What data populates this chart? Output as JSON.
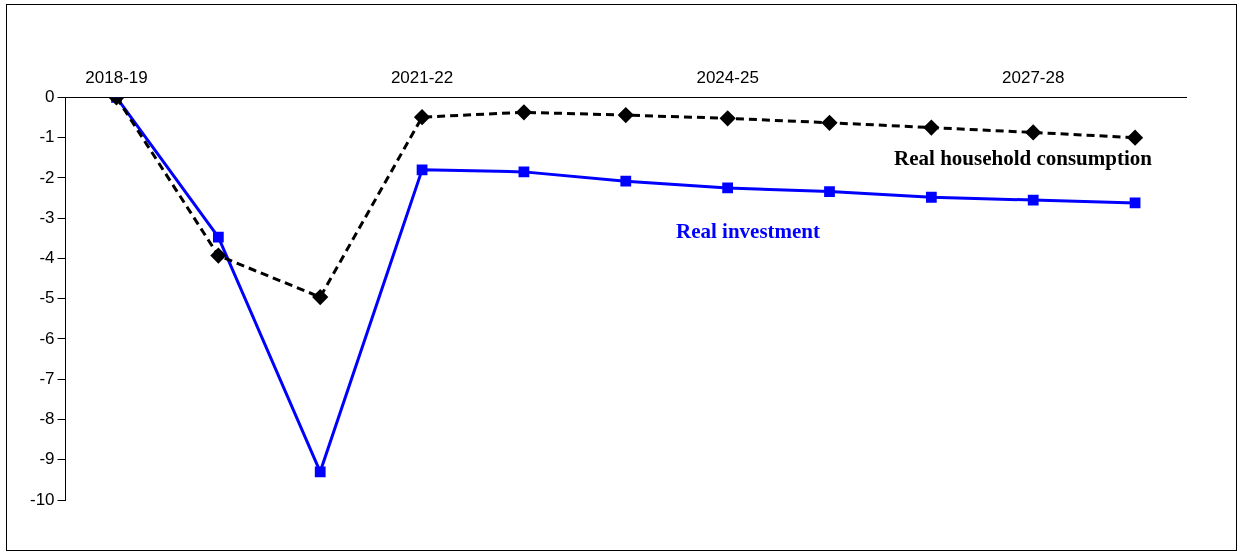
{
  "chart_data": {
    "type": "line",
    "categories": [
      "2018-19",
      null,
      null,
      "2021-22",
      null,
      null,
      "2024-25",
      null,
      null,
      "2027-28",
      null
    ],
    "ylim": [
      -10,
      0
    ],
    "yticks": [
      -10,
      -9,
      -8,
      -7,
      -6,
      -5,
      -4,
      -3,
      -2,
      -1,
      0
    ],
    "grid": false,
    "legend": false,
    "series": [
      {
        "name": "Real household consumption",
        "color": "#000000",
        "marker": "diamond",
        "line_style": "dashed",
        "values": [
          0,
          -3.93,
          -4.96,
          -0.49,
          -0.37,
          -0.44,
          -0.52,
          -0.63,
          -0.75,
          -0.87,
          -1.0
        ]
      },
      {
        "name": "Real investment",
        "color": "#0000ff",
        "marker": "square",
        "line_style": "solid",
        "values": [
          0,
          -3.47,
          -9.3,
          -1.8,
          -1.85,
          -2.08,
          -2.25,
          -2.34,
          -2.48,
          -2.55,
          -2.62
        ]
      }
    ]
  }
}
